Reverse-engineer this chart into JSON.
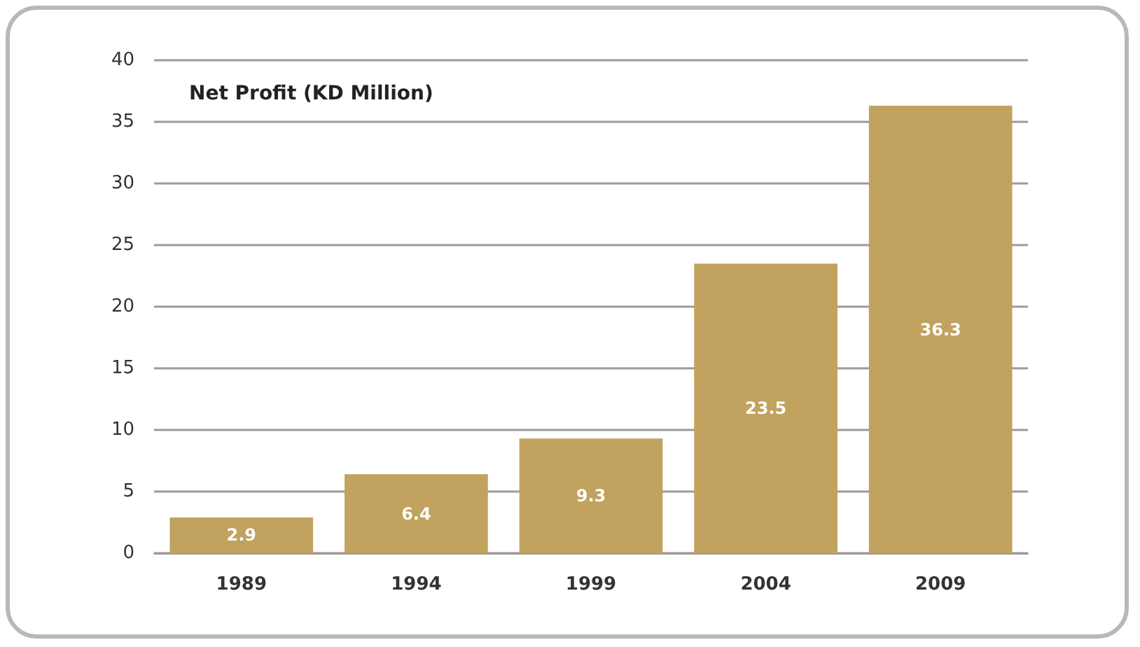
{
  "chart_data": {
    "type": "bar",
    "title": "Net Profit (KD Million)",
    "categories": [
      "1989",
      "1994",
      "1999",
      "2004",
      "2009"
    ],
    "values": [
      2.9,
      6.4,
      9.3,
      23.5,
      36.3
    ],
    "color": "#c1a25e",
    "ylim": [
      0,
      40
    ],
    "yticks": [
      0,
      5,
      10,
      15,
      20,
      25,
      30,
      35,
      40
    ],
    "grid": "y",
    "data_labels": true
  }
}
